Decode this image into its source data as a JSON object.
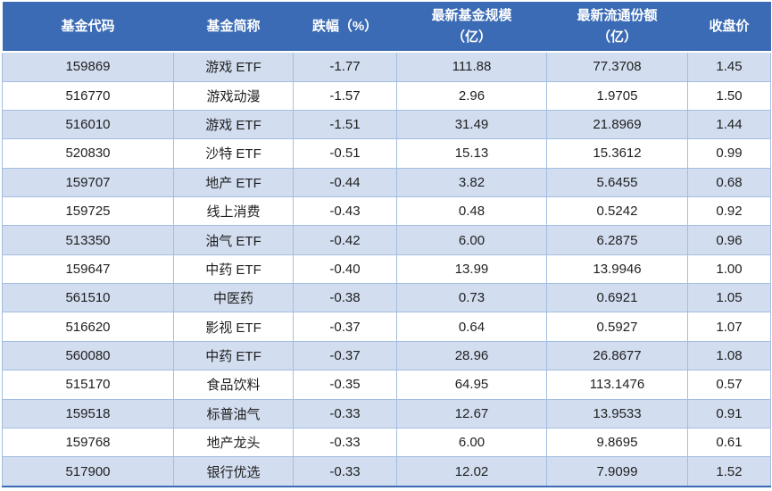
{
  "colors": {
    "header_bg": "#3A6BB4",
    "header_text": "#FFFFFF",
    "banded_row_bg": "#D2DDEF",
    "plain_row_bg": "#FFFFFF",
    "grid_border": "#A3BEE2",
    "outer_bottom_border": "#3A6BB4",
    "cell_text": "#1F1F1F"
  },
  "table": {
    "headers": [
      "基金代码",
      "基金简称",
      "跌幅（%）",
      "最新基金规模\n（亿）",
      "最新流通份额\n（亿）",
      "收盘价"
    ],
    "rows": [
      {
        "code": "159869",
        "name": "游戏 ETF",
        "drop_pct": "-1.77",
        "fund_size_yi": "111.88",
        "float_shares_yi": "77.3708",
        "close_price": "1.45"
      },
      {
        "code": "516770",
        "name": "游戏动漫",
        "drop_pct": "-1.57",
        "fund_size_yi": "2.96",
        "float_shares_yi": "1.9705",
        "close_price": "1.50"
      },
      {
        "code": "516010",
        "name": "游戏 ETF",
        "drop_pct": "-1.51",
        "fund_size_yi": "31.49",
        "float_shares_yi": "21.8969",
        "close_price": "1.44"
      },
      {
        "code": "520830",
        "name": "沙特 ETF",
        "drop_pct": "-0.51",
        "fund_size_yi": "15.13",
        "float_shares_yi": "15.3612",
        "close_price": "0.99"
      },
      {
        "code": "159707",
        "name": "地产 ETF",
        "drop_pct": "-0.44",
        "fund_size_yi": "3.82",
        "float_shares_yi": "5.6455",
        "close_price": "0.68"
      },
      {
        "code": "159725",
        "name": "线上消费",
        "drop_pct": "-0.43",
        "fund_size_yi": "0.48",
        "float_shares_yi": "0.5242",
        "close_price": "0.92"
      },
      {
        "code": "513350",
        "name": "油气 ETF",
        "drop_pct": "-0.42",
        "fund_size_yi": "6.00",
        "float_shares_yi": "6.2875",
        "close_price": "0.96"
      },
      {
        "code": "159647",
        "name": "中药 ETF",
        "drop_pct": "-0.40",
        "fund_size_yi": "13.99",
        "float_shares_yi": "13.9946",
        "close_price": "1.00"
      },
      {
        "code": "561510",
        "name": "中医药",
        "drop_pct": "-0.38",
        "fund_size_yi": "0.73",
        "float_shares_yi": "0.6921",
        "close_price": "1.05"
      },
      {
        "code": "516620",
        "name": "影视 ETF",
        "drop_pct": "-0.37",
        "fund_size_yi": "0.64",
        "float_shares_yi": "0.5927",
        "close_price": "1.07"
      },
      {
        "code": "560080",
        "name": "中药 ETF",
        "drop_pct": "-0.37",
        "fund_size_yi": "28.96",
        "float_shares_yi": "26.8677",
        "close_price": "1.08"
      },
      {
        "code": "515170",
        "name": "食品饮料",
        "drop_pct": "-0.35",
        "fund_size_yi": "64.95",
        "float_shares_yi": "113.1476",
        "close_price": "0.57"
      },
      {
        "code": "159518",
        "name": "标普油气",
        "drop_pct": "-0.33",
        "fund_size_yi": "12.67",
        "float_shares_yi": "13.9533",
        "close_price": "0.91"
      },
      {
        "code": "159768",
        "name": "地产龙头",
        "drop_pct": "-0.33",
        "fund_size_yi": "6.00",
        "float_shares_yi": "9.8695",
        "close_price": "0.61"
      },
      {
        "code": "517900",
        "name": "银行优选",
        "drop_pct": "-0.33",
        "fund_size_yi": "12.02",
        "float_shares_yi": "7.9099",
        "close_price": "1.52"
      }
    ]
  }
}
